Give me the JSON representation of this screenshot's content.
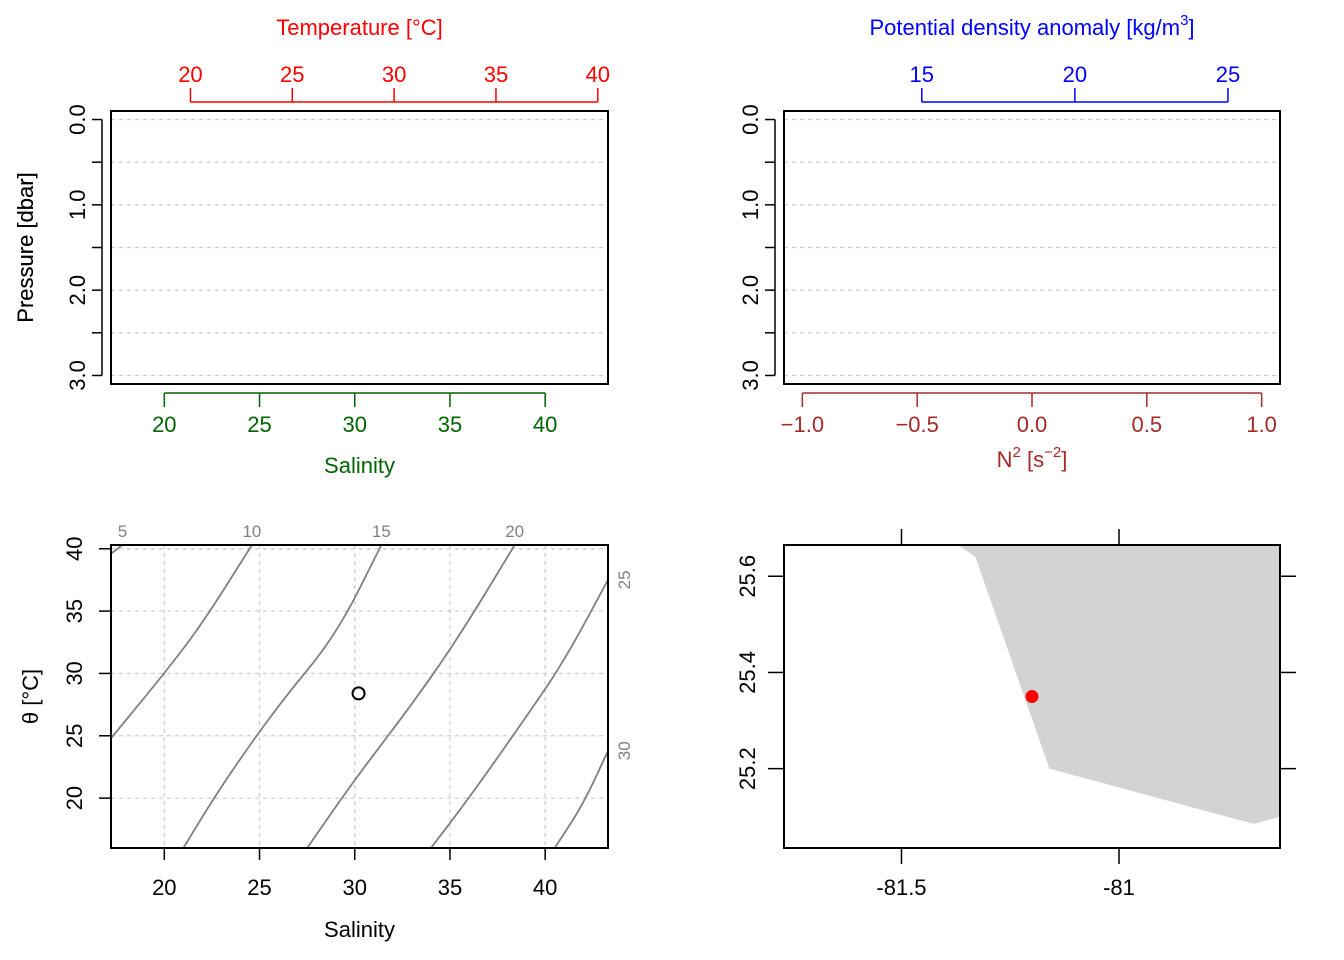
{
  "chart_data": [
    {
      "type": "scatter",
      "panel": "temperature-salinity profile",
      "top_axis": {
        "label": "Temperature [°C]",
        "ticks": [
          20,
          25,
          30,
          35,
          40
        ],
        "range": [
          16.1,
          40.5
        ],
        "color": "#ff0000"
      },
      "bottom_axis": {
        "label": "Salinity",
        "ticks": [
          20,
          25,
          30,
          35,
          40
        ],
        "range": [
          17.2,
          43.3
        ],
        "color": "#006400"
      },
      "left_axis": {
        "label": "Pressure [dbar]",
        "ticks": [
          "0.0",
          "1.0",
          "2.0",
          "3.0"
        ],
        "minor_ticks": [
          0.5,
          1.5,
          2.5
        ],
        "range": [
          3.1,
          -0.1
        ],
        "reversed": true
      },
      "grid": true,
      "series": []
    },
    {
      "type": "scatter",
      "panel": "density-N2 profile",
      "top_axis": {
        "label": "Potential density anomaly [kg/m",
        "label_sup": "3",
        "label_end": "]",
        "ticks": [
          15,
          20,
          25
        ],
        "range": [
          10.5,
          26.7
        ],
        "color": "#0000ff"
      },
      "bottom_axis": {
        "label": "N",
        "label_sup": "2",
        "label_mid": " [s",
        "label_sup2": "−2",
        "label_end": "]",
        "ticks": [
          "−1.0",
          "−0.5",
          "0.0",
          "0.5",
          "1.0"
        ],
        "tick_values": [
          -1.0,
          -0.5,
          0.0,
          0.5,
          1.0
        ],
        "range": [
          -1.08,
          1.08
        ],
        "color": "#a52a2a"
      },
      "left_axis": {
        "label": "Pressure [dbar]",
        "ticks": [
          "0.0",
          "1.0",
          "2.0",
          "3.0"
        ],
        "minor_ticks": [
          0.5,
          1.5,
          2.5
        ],
        "range": [
          3.1,
          -0.1
        ],
        "reversed": true
      },
      "grid": true,
      "series": []
    },
    {
      "type": "scatter",
      "panel": "TS diagram",
      "xlabel": "Salinity",
      "ylabel": "θ [°C]",
      "xticks": [
        20,
        25,
        30,
        35,
        40
      ],
      "yticks": [
        20,
        25,
        30,
        35,
        40
      ],
      "xlim": [
        17.2,
        43.3
      ],
      "ylim": [
        16.0,
        40.3
      ],
      "grid": true,
      "points": [
        {
          "x": 30.2,
          "y": 28.4
        }
      ],
      "density_contours": [
        {
          "label": "5",
          "points": [
            [
              17.2,
              39.6
            ],
            [
              17.8,
              40.3
            ]
          ]
        },
        {
          "label": "10",
          "points": [
            [
              17.2,
              24.8
            ],
            [
              20.0,
              30.0
            ],
            [
              22.0,
              34.0
            ],
            [
              24.6,
              40.3
            ]
          ]
        },
        {
          "label": "15",
          "points": [
            [
              21.0,
              16.0
            ],
            [
              23.0,
              21.0
            ],
            [
              26.0,
              27.5
            ],
            [
              29.0,
              33.0
            ],
            [
              31.4,
              40.3
            ]
          ]
        },
        {
          "label": "20",
          "points": [
            [
              27.5,
              16.0
            ],
            [
              30.0,
              21.5
            ],
            [
              33.0,
              27.5
            ],
            [
              35.5,
              33.0
            ],
            [
              38.4,
              40.3
            ]
          ]
        },
        {
          "label": "25",
          "points": [
            [
              34.0,
              16.0
            ],
            [
              36.0,
              20.0
            ],
            [
              39.0,
              26.5
            ],
            [
              41.0,
              31.0
            ],
            [
              43.3,
              37.5
            ]
          ]
        },
        {
          "label": "30",
          "points": [
            [
              40.5,
              16.0
            ],
            [
              42.0,
              19.5
            ],
            [
              43.3,
              23.8
            ]
          ]
        }
      ]
    },
    {
      "type": "scatter",
      "panel": "station map",
      "xticks": [
        "-81.5",
        "-81"
      ],
      "xtick_values": [
        -81.5,
        -81.0
      ],
      "yticks": [
        "25.2",
        "25.4",
        "25.6"
      ],
      "ytick_values": [
        25.2,
        25.4,
        25.6
      ],
      "xlim": [
        -81.77,
        -80.63
      ],
      "ylim": [
        25.035,
        25.665
      ],
      "land_color": "#d3d3d3",
      "station_color": "#ff0000",
      "station": {
        "x": -81.2,
        "y": 25.35
      },
      "coastline": [
        [
          -81.37,
          25.665
        ],
        [
          -81.33,
          25.64
        ],
        [
          -81.16,
          25.2
        ],
        [
          -80.69,
          25.085
        ],
        [
          -80.63,
          25.1
        ],
        [
          -80.63,
          25.665
        ]
      ]
    }
  ]
}
